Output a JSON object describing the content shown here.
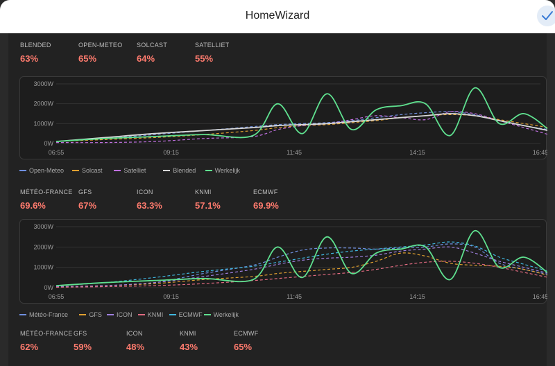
{
  "header": {
    "title": "HomeWizard"
  },
  "stats_row1": [
    {
      "label": "BLENDED",
      "value": "63%"
    },
    {
      "label": "OPEN-METEO",
      "value": "65%"
    },
    {
      "label": "SOLCAST",
      "value": "64%"
    },
    {
      "label": "SATELLIET",
      "value": "55%"
    }
  ],
  "stats_row2": [
    {
      "label": "MÉTÉO-FRANCE",
      "value": "69.6%"
    },
    {
      "label": "GFS",
      "value": "67%"
    },
    {
      "label": "ICON",
      "value": "63.3%"
    },
    {
      "label": "KNMI",
      "value": "57.1%"
    },
    {
      "label": "ECMWF",
      "value": "69.9%"
    }
  ],
  "stats_row3": [
    {
      "label": "MÉTÉO-FRANCE",
      "value": "62%"
    },
    {
      "label": "GFS",
      "value": "59%"
    },
    {
      "label": "ICON",
      "value": "48%"
    },
    {
      "label": "KNMI",
      "value": "43%"
    },
    {
      "label": "ECMWF",
      "value": "65%"
    }
  ],
  "legend1": [
    {
      "label": "Open-Meteo",
      "color": "#6f8fe0"
    },
    {
      "label": "Solcast",
      "color": "#e0a030"
    },
    {
      "label": "Satelliet",
      "color": "#c070e0"
    },
    {
      "label": "Blended",
      "color": "#d8d8d8"
    },
    {
      "label": "Werkelijk",
      "color": "#5fe08f"
    }
  ],
  "legend2": [
    {
      "label": "Météo-France",
      "color": "#6f8fe0"
    },
    {
      "label": "GFS",
      "color": "#e0a030"
    },
    {
      "label": "ICON",
      "color": "#9f80e0"
    },
    {
      "label": "KNMI",
      "color": "#e06a80"
    },
    {
      "label": "ECMWF",
      "color": "#40b8e0"
    },
    {
      "label": "Werkelijk",
      "color": "#5fe08f"
    }
  ],
  "chart_data": [
    {
      "type": "line",
      "y_ticks": [
        "3000W",
        "2000W",
        "1000W",
        "0W"
      ],
      "x_ticks": [
        "06:55",
        "09:15",
        "11:45",
        "14:15",
        "16:45"
      ],
      "ylim": [
        0,
        3000
      ],
      "x_range": [
        "06:55",
        "16:45"
      ],
      "x": [
        "06:55",
        "07:55",
        "08:55",
        "09:55",
        "10:55",
        "11:25",
        "11:55",
        "12:25",
        "12:55",
        "13:25",
        "13:55",
        "14:25",
        "14:55",
        "15:25",
        "15:55",
        "16:25",
        "16:55"
      ],
      "series": [
        {
          "name": "Open-Meteo",
          "color": "#6f8fe0",
          "dashed": true,
          "values": [
            100,
            250,
            450,
            650,
            850,
            950,
            1000,
            1050,
            1150,
            1300,
            1450,
            1550,
            1600,
            1450,
            1150,
            900,
            700
          ]
        },
        {
          "name": "Solcast",
          "color": "#e0a030",
          "dashed": true,
          "values": [
            100,
            200,
            300,
            450,
            650,
            800,
            900,
            950,
            1050,
            1150,
            1300,
            1400,
            1450,
            1400,
            1200,
            1000,
            800
          ]
        },
        {
          "name": "Satelliet",
          "color": "#c070e0",
          "dashed": true,
          "values": [
            50,
            50,
            100,
            250,
            350,
            700,
            900,
            1000,
            1200,
            1400,
            1300,
            1200,
            1600,
            1500,
            1150,
            800,
            450
          ]
        },
        {
          "name": "Blended",
          "color": "#d8d8d8",
          "dashed": false,
          "values": [
            100,
            300,
            500,
            650,
            800,
            900,
            950,
            1000,
            1100,
            1200,
            1300,
            1400,
            1500,
            1400,
            1150,
            900,
            650
          ]
        },
        {
          "name": "Werkelijk",
          "color": "#5fe08f",
          "dashed": false,
          "values": [
            100,
            250,
            350,
            450,
            400,
            2000,
            500,
            2500,
            700,
            1700,
            1900,
            2000,
            400,
            2800,
            1000,
            1500,
            700
          ]
        }
      ]
    },
    {
      "type": "line",
      "y_ticks": [
        "3000W",
        "2000W",
        "1000W",
        "0W"
      ],
      "x_ticks": [
        "06:55",
        "09:15",
        "11:45",
        "14:15",
        "16:45"
      ],
      "ylim": [
        0,
        3000
      ],
      "x_range": [
        "06:55",
        "16:45"
      ],
      "x": [
        "06:55",
        "07:55",
        "08:55",
        "09:55",
        "10:55",
        "11:25",
        "11:55",
        "12:25",
        "12:55",
        "13:25",
        "13:55",
        "14:25",
        "14:55",
        "15:25",
        "15:55",
        "16:25",
        "16:55"
      ],
      "series": [
        {
          "name": "Météo-France",
          "color": "#6f8fe0",
          "dashed": true,
          "values": [
            50,
            100,
            250,
            700,
            1100,
            1500,
            1850,
            1950,
            1950,
            1900,
            1950,
            2000,
            2150,
            2000,
            1200,
            900,
            650
          ]
        },
        {
          "name": "GFS",
          "color": "#e0a030",
          "dashed": true,
          "values": [
            50,
            100,
            200,
            400,
            550,
            700,
            800,
            900,
            1000,
            1300,
            1700,
            1550,
            1200,
            1100,
            1050,
            900,
            600
          ]
        },
        {
          "name": "ICON",
          "color": "#9f80e0",
          "dashed": true,
          "values": [
            50,
            100,
            250,
            550,
            900,
            1150,
            1350,
            1450,
            1500,
            1600,
            1800,
            1900,
            2000,
            1700,
            1300,
            1000,
            700
          ]
        },
        {
          "name": "KNMI",
          "color": "#e06a80",
          "dashed": true,
          "values": [
            20,
            50,
            100,
            200,
            350,
            450,
            550,
            650,
            750,
            900,
            1100,
            1250,
            1300,
            1200,
            1000,
            750,
            500
          ]
        },
        {
          "name": "ECMWF",
          "color": "#40b8e0",
          "dashed": true,
          "values": [
            100,
            250,
            500,
            800,
            1050,
            1250,
            1450,
            1650,
            1800,
            1900,
            2000,
            2100,
            2250,
            2050,
            1500,
            1150,
            800
          ]
        },
        {
          "name": "Werkelijk",
          "color": "#5fe08f",
          "dashed": false,
          "values": [
            100,
            250,
            350,
            450,
            400,
            2000,
            500,
            2500,
            700,
            1700,
            1900,
            2000,
            400,
            2800,
            1000,
            1500,
            700
          ]
        }
      ]
    }
  ]
}
